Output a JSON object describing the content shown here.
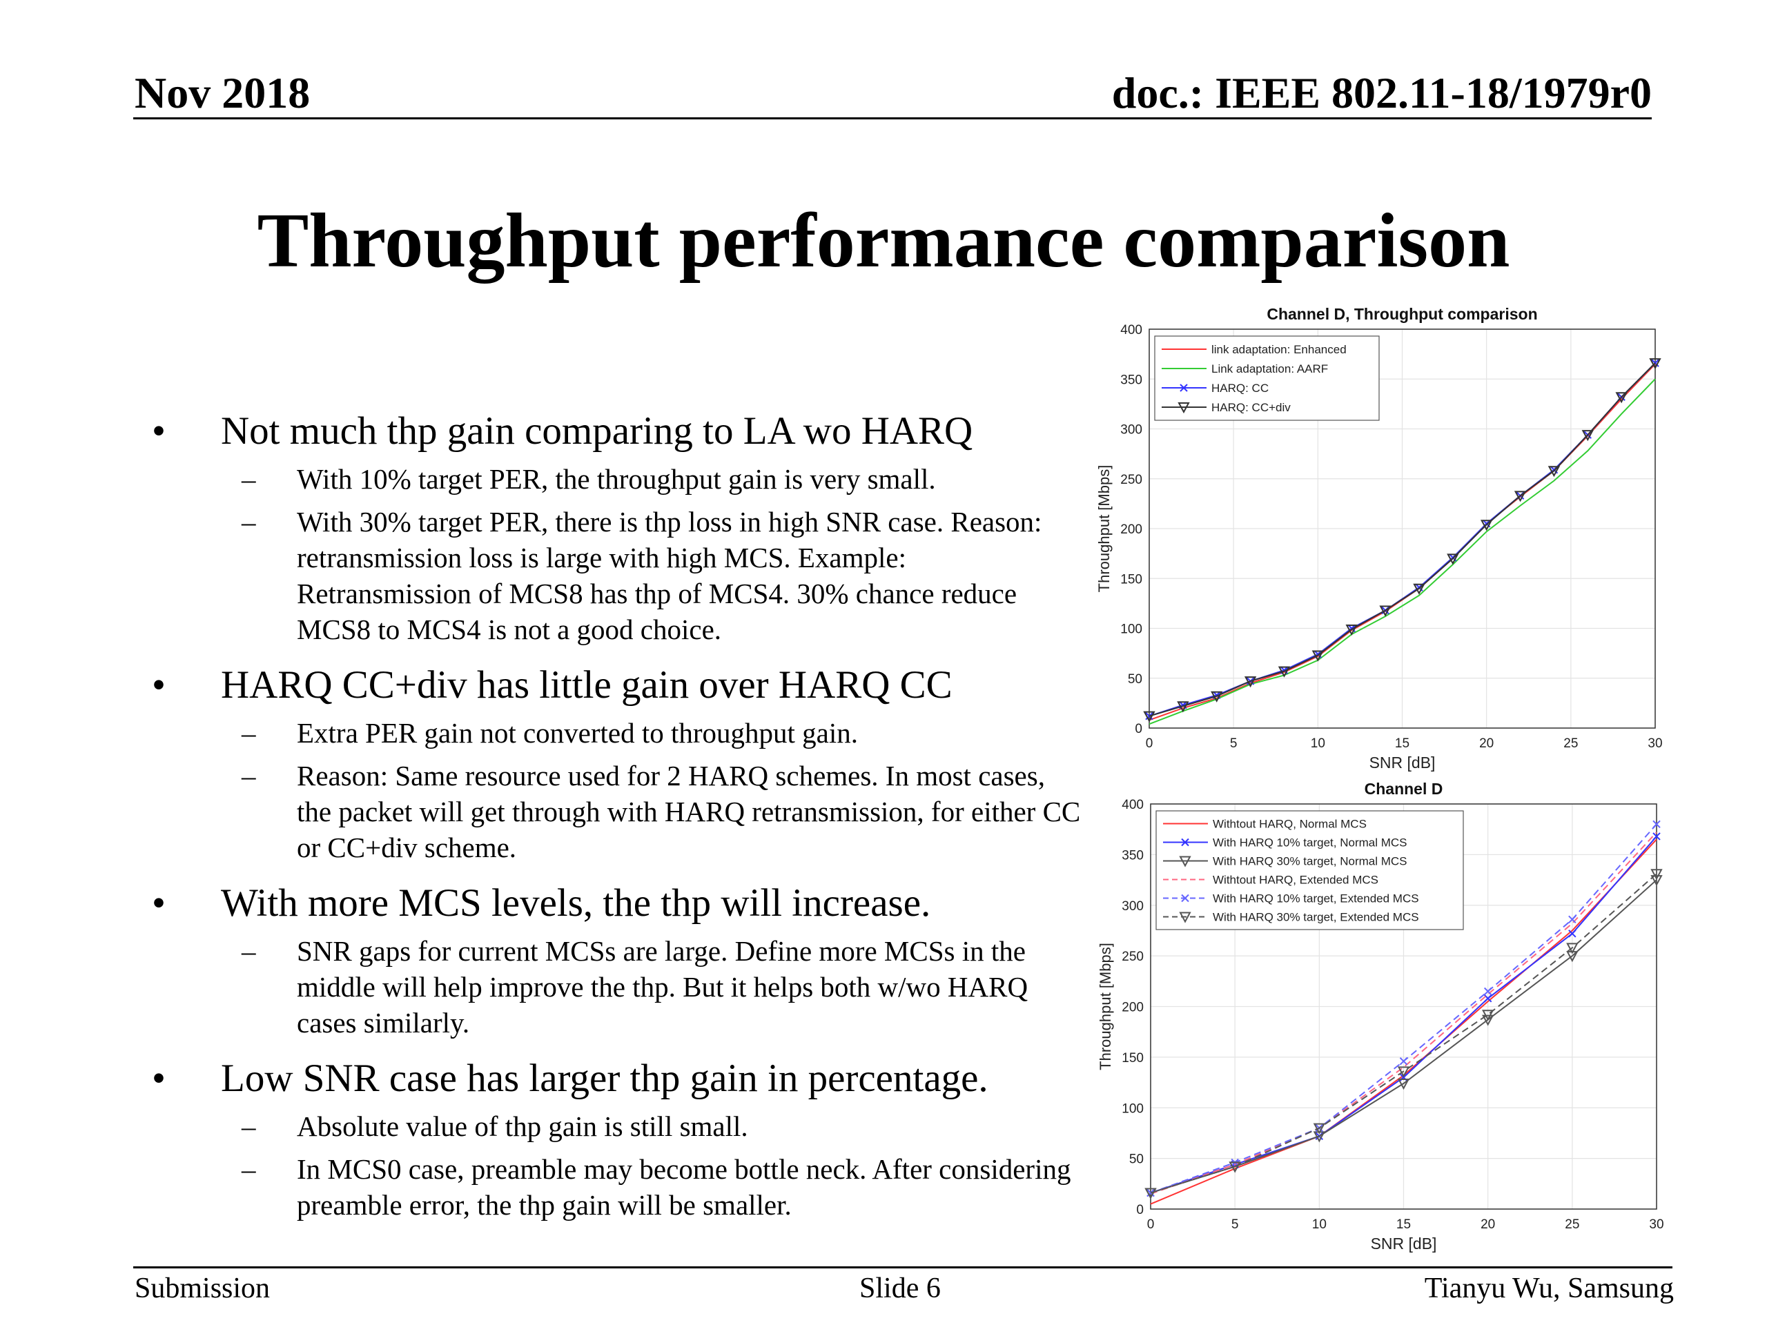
{
  "header": {
    "date": "Nov 2018",
    "doc": "doc.: IEEE 802.11-18/1979r0"
  },
  "title": "Throughput performance comparison",
  "bullets": [
    {
      "text": "Not much thp gain comparing to LA wo HARQ",
      "subs": [
        "With 10% target PER, the throughput gain is very small.",
        "With 30% target PER, there is thp loss in high SNR case. Reason: retransmission loss is large with high MCS. Example: Retransmission of MCS8 has thp of MCS4. 30% chance reduce MCS8 to MCS4 is not a good choice."
      ]
    },
    {
      "text": "HARQ CC+div has little gain over HARQ CC",
      "subs": [
        "Extra PER gain not converted to throughput gain.",
        "Reason: Same resource used for 2 HARQ schemes. In most cases, the packet will get through with HARQ retransmission, for either CC or CC+div scheme."
      ]
    },
    {
      "text": "With more MCS levels, the thp will increase.",
      "subs": [
        "SNR gaps for current MCSs are large. Define more MCSs in the middle will help improve the thp. But it helps both w/wo HARQ cases similarly."
      ]
    },
    {
      "text": "Low SNR case has larger thp gain in percentage.",
      "subs": [
        "Absolute value of thp gain is still small.",
        "In MCS0 case, preamble may become bottle neck. After considering preamble error, the thp gain will be smaller."
      ]
    }
  ],
  "footer": {
    "left": "Submission",
    "center": "Slide 6",
    "right": "Tianyu Wu, Samsung"
  },
  "chart_data": [
    {
      "type": "line",
      "title": "Channel D, Throughput comparison",
      "xlabel": "SNR [dB]",
      "ylabel": "Throughput [Mbps]",
      "xlim": [
        0,
        30
      ],
      "ylim": [
        0,
        400
      ],
      "xticks": [
        0,
        5,
        10,
        15,
        20,
        25,
        30
      ],
      "yticks": [
        0,
        50,
        100,
        150,
        200,
        250,
        300,
        350,
        400
      ],
      "grid": true,
      "legend_position": "top-left",
      "x": [
        0,
        2,
        4,
        6,
        8,
        10,
        12,
        14,
        16,
        18,
        20,
        22,
        24,
        26,
        28,
        30
      ],
      "series": [
        {
          "name": "link adaptation: Enhanced",
          "color": "#ff3333",
          "marker": "none",
          "values": [
            8,
            20,
            30,
            45,
            56,
            72,
            98,
            117,
            140,
            170,
            205,
            232,
            258,
            293,
            330,
            365
          ]
        },
        {
          "name": "Link adaptation: AARF",
          "color": "#33cc33",
          "marker": "none",
          "values": [
            4,
            17,
            29,
            44,
            53,
            68,
            94,
            112,
            133,
            164,
            197,
            223,
            248,
            278,
            315,
            350
          ]
        },
        {
          "name": "HARQ: CC",
          "color": "#3333ff",
          "marker": "x",
          "values": [
            12,
            23,
            33,
            47,
            58,
            74,
            100,
            118,
            141,
            171,
            205,
            233,
            259,
            294,
            332,
            366
          ]
        },
        {
          "name": "HARQ: CC+div",
          "color": "#333333",
          "marker": "triangle-down",
          "values": [
            12,
            22,
            32,
            47,
            57,
            73,
            99,
            118,
            140,
            170,
            204,
            233,
            258,
            294,
            332,
            366
          ]
        }
      ]
    },
    {
      "type": "line",
      "title": "Channel D",
      "xlabel": "SNR [dB]",
      "ylabel": "Throughput [Mbps]",
      "xlim": [
        0,
        30
      ],
      "ylim": [
        0,
        400
      ],
      "xticks": [
        0,
        5,
        10,
        15,
        20,
        25,
        30
      ],
      "yticks": [
        0,
        50,
        100,
        150,
        200,
        250,
        300,
        350,
        400
      ],
      "grid": true,
      "legend_position": "top-left",
      "x": [
        0,
        5,
        10,
        15,
        20,
        25,
        30
      ],
      "series": [
        {
          "name": "Withtout HARQ, Normal MCS",
          "color": "#ff3333",
          "marker": "none",
          "dash": false,
          "values": [
            5,
            40,
            72,
            132,
            205,
            275,
            365
          ]
        },
        {
          "name": "With HARQ 10% target, Normal MCS",
          "color": "#3333ff",
          "marker": "x",
          "dash": false,
          "values": [
            16,
            44,
            72,
            130,
            208,
            272,
            368
          ]
        },
        {
          "name": "With HARQ 30% target, Normal MCS",
          "color": "#555555",
          "marker": "triangle-down",
          "dash": false,
          "values": [
            16,
            42,
            72,
            124,
            187,
            250,
            325
          ]
        },
        {
          "name": "Withtout HARQ, Extended MCS",
          "color": "#ff6680",
          "marker": "none",
          "dash": true,
          "values": [
            15,
            44,
            80,
            140,
            212,
            282,
            372
          ]
        },
        {
          "name": "With HARQ 10% target, Extended MCS",
          "color": "#6666ff",
          "marker": "x",
          "dash": true,
          "values": [
            16,
            46,
            80,
            146,
            215,
            286,
            380
          ]
        },
        {
          "name": "With HARQ 30% target, Extended MCS",
          "color": "#555555",
          "marker": "triangle-down",
          "dash": true,
          "values": [
            16,
            42,
            80,
            136,
            192,
            258,
            331
          ]
        }
      ]
    }
  ]
}
